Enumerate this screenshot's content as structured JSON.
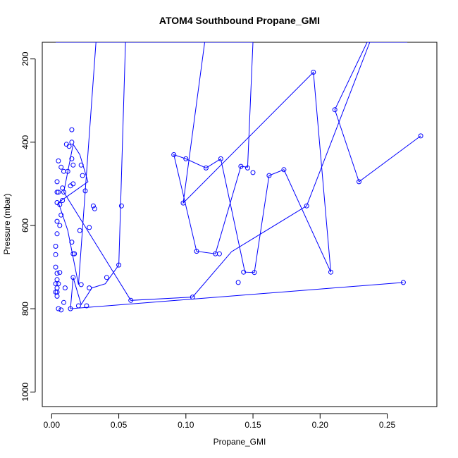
{
  "chart_data": {
    "type": "line",
    "title": "ATOM4 Southbound Propane_GMI",
    "xlabel": "Propane_GMI",
    "ylabel": "Pressure (mbar)",
    "xlim": [
      -0.007,
      0.287
    ],
    "ylim": [
      1035,
      160
    ],
    "y_reversed": true,
    "x_ticks": [
      0.0,
      0.05,
      0.1,
      0.15,
      0.2,
      0.25
    ],
    "x_tick_labels": [
      "0.00",
      "0.05",
      "0.10",
      "0.15",
      "0.20",
      "0.25"
    ],
    "y_ticks": [
      200,
      400,
      600,
      800,
      1000
    ],
    "y_tick_labels": [
      "200",
      "400",
      "600",
      "800",
      "1000"
    ],
    "grid": false,
    "legend": "none",
    "series_color": "#0000ff",
    "series": [
      {
        "x": [
          0.275,
          0.229,
          0.211,
          0.235,
          0.265,
          0.237,
          0.19,
          0.134,
          0.105,
          0.059,
          0.009,
          0.016,
          0.021,
          0.027,
          0.005,
          0.012,
          0.02,
          0.033,
          0.052,
          0.072,
          0.06,
          0.045,
          0.035,
          0.018,
          0.011,
          0.015,
          0.025,
          0.028,
          0.008,
          0.014,
          0.019,
          0.006,
          0.003,
          0.01,
          0.012,
          0.004,
          0.004,
          0.016,
          0.012,
          0.015,
          0.006,
          0.009,
          0.012,
          0.014,
          0.008,
          0.007,
          0.004,
          0.01,
          0.004,
          0.005,
          0.003,
          0.007
        ],
        "y": [
          385,
          495,
          322,
          160,
          160,
          160,
          553,
          663,
          772,
          780,
          520,
          405,
          430,
          495,
          545,
          612,
          742,
          160,
          160,
          160,
          160,
          160,
          160,
          160,
          160,
          160,
          160,
          160,
          160,
          160,
          160,
          160,
          160,
          160,
          160,
          160,
          160,
          160,
          160,
          160,
          160,
          160,
          160,
          160,
          160,
          160,
          160,
          160,
          160,
          160,
          160,
          160
        ]
      },
      {
        "x": [
          0.262,
          0.014,
          0.016,
          0.022,
          0.03,
          0.04,
          0.05,
          0.055,
          0.065,
          0.075,
          0.085,
          0.095,
          0.105,
          0.115,
          0.125,
          0.13,
          0.142,
          0.15,
          0.146,
          0.141,
          0.122,
          0.108,
          0.091,
          0.1,
          0.115,
          0.126,
          0.144,
          0.151,
          0.162,
          0.173,
          0.208,
          0.195,
          0.098,
          0.114,
          0.14
        ],
        "y": [
          737,
          800,
          725,
          790,
          750,
          740,
          695,
          160,
          160,
          160,
          160,
          160,
          160,
          160,
          160,
          160,
          160,
          160,
          460,
          458,
          668,
          662,
          430,
          440,
          462,
          440,
          712,
          713,
          480,
          466,
          712,
          232,
          546,
          160,
          160
        ]
      }
    ],
    "points": [
      {
        "x": 0.275,
        "y": 385
      },
      {
        "x": 0.262,
        "y": 737
      },
      {
        "x": 0.229,
        "y": 495
      },
      {
        "x": 0.211,
        "y": 322
      },
      {
        "x": 0.208,
        "y": 712
      },
      {
        "x": 0.195,
        "y": 232
      },
      {
        "x": 0.19,
        "y": 553
      },
      {
        "x": 0.173,
        "y": 466
      },
      {
        "x": 0.162,
        "y": 480
      },
      {
        "x": 0.151,
        "y": 713
      },
      {
        "x": 0.15,
        "y": 473
      },
      {
        "x": 0.146,
        "y": 462
      },
      {
        "x": 0.143,
        "y": 712
      },
      {
        "x": 0.141,
        "y": 458
      },
      {
        "x": 0.139,
        "y": 737
      },
      {
        "x": 0.126,
        "y": 440
      },
      {
        "x": 0.125,
        "y": 668
      },
      {
        "x": 0.122,
        "y": 668
      },
      {
        "x": 0.115,
        "y": 462
      },
      {
        "x": 0.108,
        "y": 662
      },
      {
        "x": 0.105,
        "y": 772
      },
      {
        "x": 0.1,
        "y": 440
      },
      {
        "x": 0.098,
        "y": 546
      },
      {
        "x": 0.091,
        "y": 430
      },
      {
        "x": 0.059,
        "y": 780
      },
      {
        "x": 0.052,
        "y": 553
      },
      {
        "x": 0.05,
        "y": 695
      },
      {
        "x": 0.041,
        "y": 725
      },
      {
        "x": 0.032,
        "y": 560
      },
      {
        "x": 0.031,
        "y": 553
      },
      {
        "x": 0.028,
        "y": 605
      },
      {
        "x": 0.028,
        "y": 750
      },
      {
        "x": 0.026,
        "y": 793
      },
      {
        "x": 0.025,
        "y": 517
      },
      {
        "x": 0.023,
        "y": 480
      },
      {
        "x": 0.022,
        "y": 455
      },
      {
        "x": 0.022,
        "y": 742
      },
      {
        "x": 0.021,
        "y": 612
      },
      {
        "x": 0.02,
        "y": 793
      },
      {
        "x": 0.017,
        "y": 668
      },
      {
        "x": 0.016,
        "y": 725
      },
      {
        "x": 0.016,
        "y": 668
      },
      {
        "x": 0.016,
        "y": 500
      },
      {
        "x": 0.016,
        "y": 455
      },
      {
        "x": 0.015,
        "y": 440
      },
      {
        "x": 0.015,
        "y": 400
      },
      {
        "x": 0.015,
        "y": 370
      },
      {
        "x": 0.015,
        "y": 640
      },
      {
        "x": 0.014,
        "y": 800
      },
      {
        "x": 0.014,
        "y": 505
      },
      {
        "x": 0.013,
        "y": 410
      },
      {
        "x": 0.012,
        "y": 470
      },
      {
        "x": 0.011,
        "y": 405
      },
      {
        "x": 0.01,
        "y": 750
      },
      {
        "x": 0.009,
        "y": 785
      },
      {
        "x": 0.009,
        "y": 520
      },
      {
        "x": 0.009,
        "y": 470
      },
      {
        "x": 0.008,
        "y": 510
      },
      {
        "x": 0.008,
        "y": 540
      },
      {
        "x": 0.007,
        "y": 803
      },
      {
        "x": 0.007,
        "y": 575
      },
      {
        "x": 0.007,
        "y": 460
      },
      {
        "x": 0.006,
        "y": 713
      },
      {
        "x": 0.006,
        "y": 600
      },
      {
        "x": 0.006,
        "y": 550
      },
      {
        "x": 0.005,
        "y": 800
      },
      {
        "x": 0.005,
        "y": 520
      },
      {
        "x": 0.005,
        "y": 445
      },
      {
        "x": 0.005,
        "y": 740
      },
      {
        "x": 0.004,
        "y": 770
      },
      {
        "x": 0.004,
        "y": 760
      },
      {
        "x": 0.004,
        "y": 750
      },
      {
        "x": 0.004,
        "y": 730
      },
      {
        "x": 0.004,
        "y": 715
      },
      {
        "x": 0.004,
        "y": 620
      },
      {
        "x": 0.004,
        "y": 590
      },
      {
        "x": 0.004,
        "y": 545
      },
      {
        "x": 0.004,
        "y": 520
      },
      {
        "x": 0.004,
        "y": 495
      },
      {
        "x": 0.003,
        "y": 760
      },
      {
        "x": 0.003,
        "y": 740
      },
      {
        "x": 0.003,
        "y": 700
      },
      {
        "x": 0.003,
        "y": 670
      },
      {
        "x": 0.003,
        "y": 650
      }
    ]
  }
}
